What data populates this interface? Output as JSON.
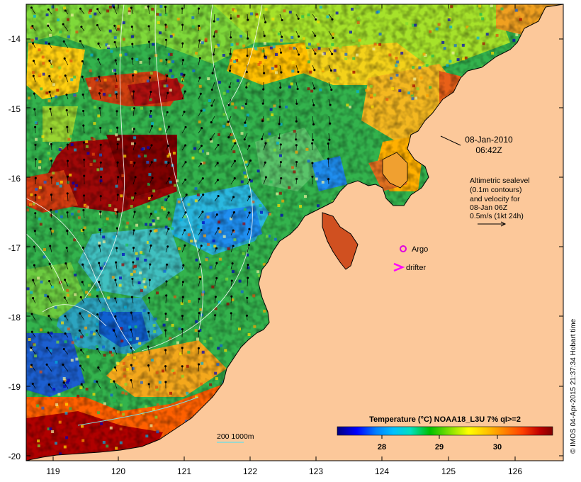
{
  "map": {
    "axes": {
      "lat_ticks": [
        "-14",
        "-15",
        "-16",
        "-17",
        "-18",
        "-19",
        "-20"
      ],
      "lon_ticks": [
        "119",
        "120",
        "121",
        "122",
        "123",
        "124",
        "125",
        "126"
      ]
    },
    "timestamp": {
      "date": "08-Jan-2010",
      "time": "06:42Z"
    },
    "altimetry_note": {
      "lines": [
        "Altimetric sealevel",
        "(0.1m contours)",
        "and velocity for",
        "08-Jan 06Z",
        "0.5m/s (1kt 24h)"
      ]
    },
    "legend": {
      "argo_label": "Argo",
      "drifter_label": "drifter",
      "argo_color": "#e000e0",
      "drifter_color": "#ff00ff"
    },
    "colorbar": {
      "title": "Temperature (°C) NOAA18_L3U 7% qI>=2",
      "ticks": [
        "28",
        "29",
        "30"
      ],
      "colors": [
        "#000080",
        "#0000ff",
        "#0080ff",
        "#00c0ff",
        "#00e0c0",
        "#00c000",
        "#80e000",
        "#ffff00",
        "#ffc000",
        "#ff8000",
        "#ff4000",
        "#c00000",
        "#800000"
      ]
    },
    "bathymetry_label": "200  1000m",
    "credit": "© IMOS 04-Apr-2015 21:37:34 Hobart time",
    "colors": {
      "land": "#fcc89a",
      "coast": "#000000",
      "ocean_base": "#33b34d"
    }
  }
}
